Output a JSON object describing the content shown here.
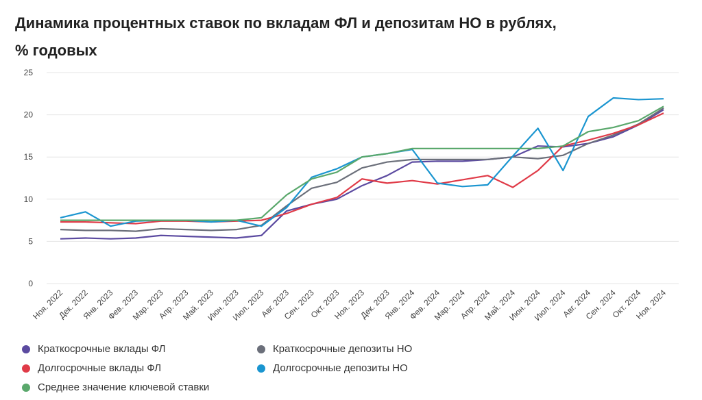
{
  "chart_data": {
    "type": "line",
    "title": "Динамика процентных ставок по вкладам ФЛ и депозитам НО в рублях,\n% годовых",
    "categories": [
      "Ноя. 2022",
      "Дек. 2022",
      "Янв. 2023",
      "Фев. 2023",
      "Мар. 2023",
      "Апр. 2023",
      "Май. 2023",
      "Июн. 2023",
      "Июл. 2023",
      "Авг. 2023",
      "Сен. 2023",
      "Окт. 2023",
      "Ноя. 2023",
      "Дек. 2023",
      "Янв. 2024",
      "Фев. 2024",
      "Мар. 2024",
      "Апр. 2024",
      "Май. 2024",
      "Июн. 2024",
      "Июл. 2024",
      "Авг. 2024",
      "Сен. 2024",
      "Окт. 2024",
      "Ноя. 2024"
    ],
    "series": [
      {
        "name": "Краткосрочные вклады ФЛ",
        "color": "#5b4aa0",
        "values": [
          5.3,
          5.4,
          5.3,
          5.4,
          5.7,
          5.6,
          5.5,
          5.4,
          5.7,
          8.6,
          9.4,
          10.0,
          11.6,
          12.8,
          14.4,
          14.5,
          14.5,
          14.7,
          15.0,
          16.3,
          16.2,
          16.6,
          17.4,
          18.8,
          20.6
        ]
      },
      {
        "name": "Краткосрочные депозиты НО",
        "color": "#6b6f7a",
        "values": [
          6.4,
          6.3,
          6.3,
          6.2,
          6.5,
          6.4,
          6.3,
          6.4,
          6.9,
          9.2,
          11.3,
          12.0,
          13.7,
          14.4,
          14.7,
          14.7,
          14.7,
          14.7,
          15.0,
          14.8,
          15.2,
          16.6,
          17.6,
          18.9,
          20.8
        ]
      },
      {
        "name": "Долгосрочные вклады ФЛ",
        "color": "#e03b48",
        "values": [
          7.3,
          7.3,
          7.2,
          7.1,
          7.4,
          7.4,
          7.3,
          7.4,
          7.5,
          8.3,
          9.4,
          10.2,
          12.4,
          11.9,
          12.2,
          11.8,
          12.3,
          12.8,
          11.4,
          13.4,
          16.3,
          17.0,
          17.8,
          18.8,
          20.2
        ]
      },
      {
        "name": "Долгосрочные депозиты НО",
        "color": "#1a95d0",
        "values": [
          7.8,
          8.5,
          6.8,
          7.4,
          7.5,
          7.5,
          7.3,
          7.5,
          6.8,
          9.0,
          12.6,
          13.6,
          15.0,
          15.4,
          15.9,
          11.9,
          11.5,
          11.7,
          15.1,
          18.4,
          13.4,
          19.8,
          22.0,
          21.8,
          21.9
        ]
      },
      {
        "name": "Среднее значение ключевой ставки",
        "color": "#5aa86c",
        "values": [
          7.5,
          7.5,
          7.5,
          7.5,
          7.5,
          7.5,
          7.5,
          7.5,
          7.8,
          10.5,
          12.4,
          13.2,
          15.0,
          15.4,
          16.0,
          16.0,
          16.0,
          16.0,
          16.0,
          16.0,
          16.3,
          18.0,
          18.5,
          19.3,
          21.0
        ]
      }
    ],
    "ylim": [
      0,
      25
    ],
    "yticks": [
      0,
      5,
      10,
      15,
      20,
      25
    ],
    "grid": true
  }
}
